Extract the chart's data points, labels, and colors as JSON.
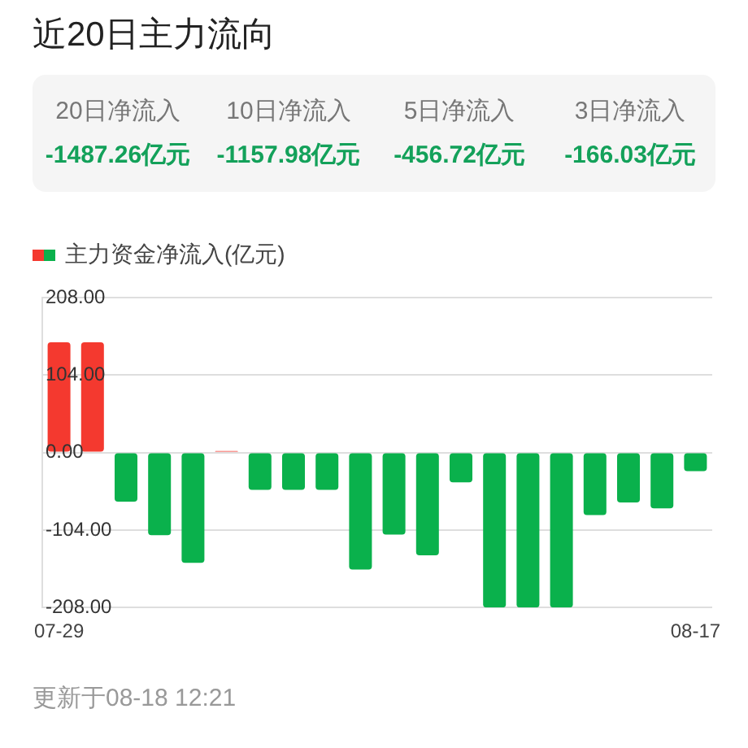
{
  "chart_data": [
    {
      "type": "other",
      "title": "近20日主力流向",
      "annotations": [
        "20日净流入",
        "-1487.26亿元",
        "10日净流入",
        "-1157.98亿元",
        "5日净流入",
        "-456.72亿元",
        "3日净流入",
        "-166.03亿元"
      ]
    },
    {
      "type": "bar",
      "categories": [
        "07-29",
        null,
        null,
        null,
        null,
        null,
        null,
        null,
        null,
        null,
        null,
        null,
        null,
        null,
        null,
        null,
        null,
        null,
        null,
        "08-17"
      ],
      "series": [
        {
          "name": "主力资金净流入(亿元)",
          "colors": [
            "#f4392f",
            "#f4392f",
            "#0ab14c",
            "#0ab14c",
            "#0ab14c",
            "#f4392f",
            "#0ab14c",
            "#0ab14c",
            "#0ab14c",
            "#0ab14c",
            "#0ab14c",
            "#0ab14c",
            "#0ab14c",
            "#0ab14c",
            "#0ab14c",
            "#0ab14c",
            "#0ab14c",
            "#0ab14c",
            "#0ab14c",
            "#0ab14c"
          ],
          "values": [
            148,
            148,
            -66,
            -111,
            -148,
            2,
            -50,
            -50,
            -50,
            -157,
            -110,
            -138,
            -40,
            -208,
            -208,
            -208,
            -84,
            -67,
            -75,
            -25
          ]
        }
      ],
      "ylim": [
        -208,
        208
      ],
      "yticks": [
        {
          "value": 208,
          "label": "208.00"
        },
        {
          "value": 104,
          "label": "104.00"
        },
        {
          "value": 0,
          "label": "0.00"
        },
        {
          "value": -104,
          "label": "-104.00"
        },
        {
          "value": -208,
          "label": "-208.00"
        }
      ],
      "grid": "y",
      "legend": "top left",
      "annotations": [
        "更新于08-18 12:21"
      ]
    }
  ]
}
